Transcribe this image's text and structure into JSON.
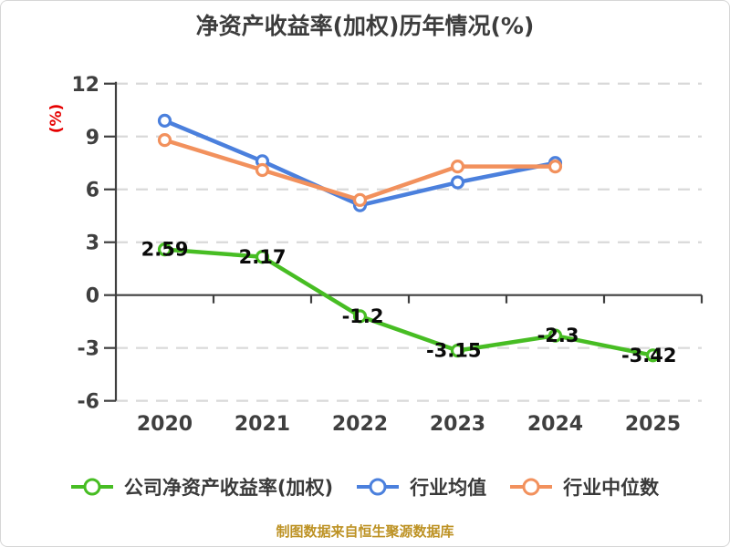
{
  "chart_data": {
    "type": "line",
    "title": "净资产收益率(加权)历年情况(%)",
    "ylabel": "(%)",
    "xlabel": "",
    "categories": [
      "2020",
      "2021",
      "2022",
      "2023",
      "2024",
      "2025"
    ],
    "ylim": [
      -6,
      12
    ],
    "y_ticks": [
      12,
      9,
      6,
      3,
      0,
      -3,
      -6
    ],
    "grid": "horizontal dashed",
    "legend_position": "bottom",
    "series": [
      {
        "name": "公司净资产收益率(加权)",
        "color": "#47bd23",
        "values": [
          2.59,
          2.17,
          -1.2,
          -3.15,
          -2.3,
          -3.42
        ],
        "point_labels": [
          "2.59",
          "2.17",
          "-1.2",
          "-3.15",
          "-2.3",
          "-3.42"
        ]
      },
      {
        "name": "行业均值",
        "color": "#4b80dd",
        "values": [
          9.9,
          7.6,
          5.1,
          6.4,
          7.5
        ]
      },
      {
        "name": "行业中位数",
        "color": "#f2915d",
        "values": [
          8.8,
          7.1,
          5.4,
          7.3,
          7.3
        ]
      }
    ],
    "footer": "制图数据来自恒生聚源数据库"
  },
  "colors": {
    "background": "#ffffff",
    "title": "#3d3d3d",
    "axis": "#3f3f3f",
    "grid": "#d9d9d9",
    "ylabel_red": "#e60000",
    "point_label": "#0a0a0a",
    "footer": "#bd9224",
    "marker_fill": "#ffffff"
  }
}
